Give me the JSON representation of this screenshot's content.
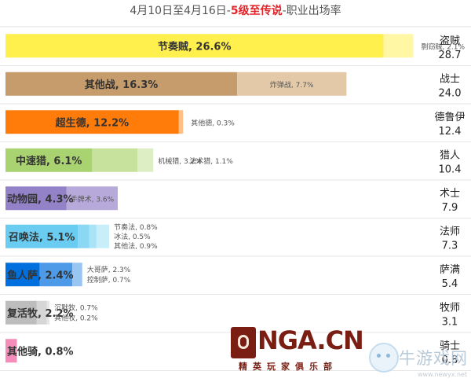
{
  "title": {
    "prefix": "4月10日至4月16日-",
    "highlight": "5级至传说",
    "suffix": "-职业出场率"
  },
  "chart_data": {
    "type": "bar",
    "subtype": "stacked-horizontal",
    "title": "4月10日至4月16日-5级至传说-职业出场率",
    "xlim": [
      0,
      30
    ],
    "grid": false,
    "classes": [
      {
        "name": "盗贼",
        "total": "28.7",
        "color": "#fff04d",
        "segments": [
          {
            "label": "节奏贼",
            "value": 26.6,
            "color": "#fff04d"
          },
          {
            "label": "剽窃贼",
            "value": 2.1,
            "color": "#fff7a3"
          }
        ]
      },
      {
        "name": "战士",
        "total": "24.0",
        "color": "#c69c6d",
        "segments": [
          {
            "label": "其他战",
            "value": 16.3,
            "color": "#c69c6d"
          },
          {
            "label": "炸弹战",
            "value": 7.7,
            "color": "#e3c9a8"
          }
        ]
      },
      {
        "name": "德鲁伊",
        "total": "12.4",
        "color": "#ff7c0a",
        "segments": [
          {
            "label": "超生德",
            "value": 12.2,
            "color": "#ff7c0a"
          },
          {
            "label": "其他德",
            "value": 0.3,
            "color": "#ffbf85"
          }
        ]
      },
      {
        "name": "猎人",
        "total": "10.4",
        "color": "#a9d271",
        "segments": [
          {
            "label": "中速猎",
            "value": 6.1,
            "color": "#a9d271"
          },
          {
            "label": "机械猎",
            "value": 3.2,
            "color": "#c6e29c"
          },
          {
            "label": "法术猎",
            "value": 1.1,
            "color": "#ddeec4"
          }
        ]
      },
      {
        "name": "术士",
        "total": "7.9",
        "color": "#9482c9",
        "segments": [
          {
            "label": "动物园",
            "value": 4.3,
            "color": "#9482c9"
          },
          {
            "label": "手牌术",
            "value": 3.6,
            "color": "#b7aadb"
          }
        ]
      },
      {
        "name": "法师",
        "total": "7.3",
        "color": "#69ccf0",
        "segments": [
          {
            "label": "召唤法",
            "value": 5.1,
            "color": "#69ccf0"
          },
          {
            "label": "节奏法",
            "value": 0.8,
            "color": "#8ad8f4"
          },
          {
            "label": "冰法",
            "value": 0.5,
            "color": "#a9e3f7"
          },
          {
            "label": "其他法",
            "value": 0.9,
            "color": "#c8eefa"
          }
        ]
      },
      {
        "name": "萨满",
        "total": "5.4",
        "color": "#0070de",
        "segments": [
          {
            "label": "鱼人萨",
            "value": 2.4,
            "color": "#0070de"
          },
          {
            "label": "大哥萨",
            "value": 2.3,
            "color": "#4d9ae8"
          },
          {
            "label": "控制萨",
            "value": 0.7,
            "color": "#99c5f2"
          }
        ]
      },
      {
        "name": "牧师",
        "total": "3.1",
        "color": "#bdbdbd",
        "segments": [
          {
            "label": "复活牧",
            "value": 2.2,
            "color": "#bdbdbd"
          },
          {
            "label": "沉默牧",
            "value": 0.7,
            "color": "#d6d6d6"
          },
          {
            "label": "其他牧",
            "value": 0.2,
            "color": "#e6e6e6"
          }
        ]
      },
      {
        "name": "骑士",
        "total": "0.8",
        "color": "#f58cba",
        "segments": [
          {
            "label": "其他骑",
            "value": 0.8,
            "color": "#f58cba"
          }
        ]
      }
    ]
  },
  "watermarks": {
    "brand_name": "NGA.CN",
    "brand_sub": "精英玩家俱乐部",
    "site_name": "牛游戏网",
    "site_url": "www.newyx.net"
  }
}
